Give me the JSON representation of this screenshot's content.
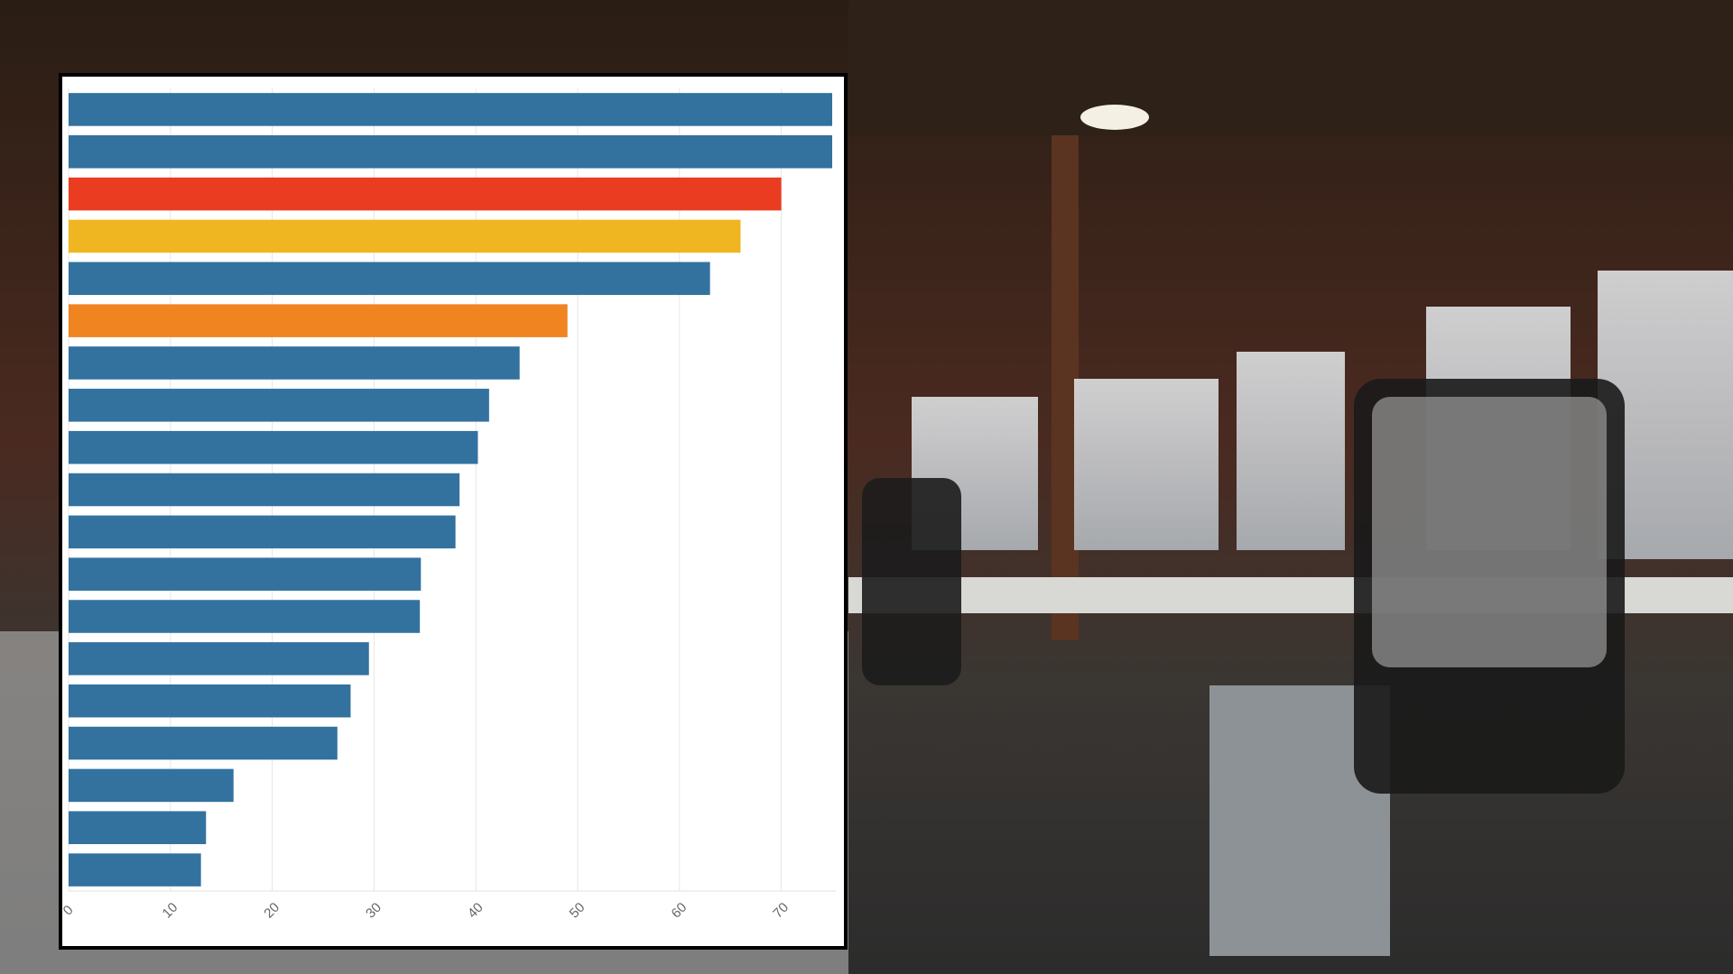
{
  "chart_data": {
    "type": "barh",
    "categories": [
      null,
      null,
      null,
      null,
      null,
      null,
      null,
      null,
      null,
      null,
      null,
      null,
      null,
      null,
      null,
      null,
      null,
      null,
      null
    ],
    "values": [
      75,
      75,
      70,
      66,
      63,
      49,
      44.3,
      41.3,
      40.2,
      38.4,
      38,
      34.6,
      34.5,
      29.5,
      27.7,
      26.4,
      16.2,
      13.5,
      13
    ],
    "colors": [
      "#33729f",
      "#33729f",
      "#ea3c21",
      "#f0b622",
      "#33729f",
      "#ef8421",
      "#33729f",
      "#33729f",
      "#33729f",
      "#33729f",
      "#33729f",
      "#33729f",
      "#33729f",
      "#33729f",
      "#33729f",
      "#33729f",
      "#33729f",
      "#33729f",
      "#33729f"
    ],
    "xlim": [
      0,
      75
    ],
    "xticks": [
      0,
      10,
      20,
      30,
      40,
      50,
      60,
      70
    ],
    "grid": true
  }
}
